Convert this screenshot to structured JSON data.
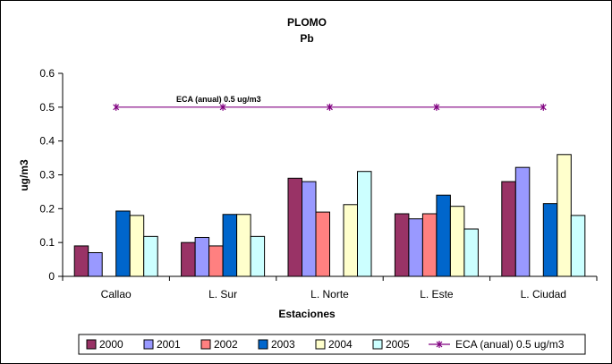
{
  "chart_data": {
    "type": "bar",
    "title": "PLOMO",
    "subtitle": "Pb",
    "xlabel": "Estaciones",
    "ylabel": "ug/m3",
    "ylim": [
      0,
      0.6
    ],
    "yticks": [
      "0",
      "0.1",
      "0.2",
      "0.3",
      "0.4",
      "0.5",
      "0.6"
    ],
    "grid": false,
    "legend_position": "bottom",
    "categories": [
      "Callao",
      "L. Sur",
      "L. Norte",
      "L. Este",
      "L. Ciudad"
    ],
    "series": [
      {
        "name": "2000",
        "color": "#993366",
        "values": [
          0.09,
          0.1,
          0.29,
          0.185,
          0.28
        ]
      },
      {
        "name": "2001",
        "color": "#9999FF",
        "values": [
          0.07,
          0.115,
          0.28,
          0.17,
          0.322
        ]
      },
      {
        "name": "2002",
        "color": "#FF8080",
        "values": [
          null,
          0.09,
          0.19,
          0.185,
          null
        ]
      },
      {
        "name": "2003",
        "color": "#0066CC",
        "values": [
          0.193,
          0.183,
          null,
          0.24,
          0.215
        ]
      },
      {
        "name": "2004",
        "color": "#FFFFCC",
        "values": [
          0.18,
          0.183,
          0.212,
          0.207,
          0.36
        ]
      },
      {
        "name": "2005",
        "color": "#CCFFFF",
        "values": [
          0.118,
          0.118,
          0.31,
          0.14,
          0.18
        ]
      }
    ],
    "reference_line": {
      "name": "ECA (anual) 0.5 ug/m3",
      "label": "ECA (anual) 0.5 ug/m3",
      "value": 0.5,
      "color": "#800080",
      "marker": "star"
    }
  }
}
